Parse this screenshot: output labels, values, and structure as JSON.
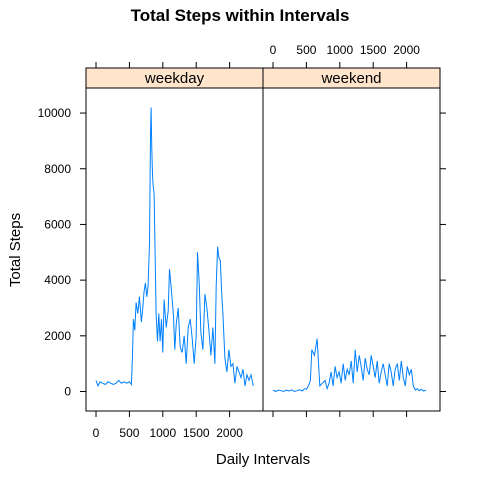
{
  "chart_data": {
    "type": "line",
    "title": "Total Steps within Intervals",
    "xlabel": "Daily Intervals",
    "ylabel": "Total Steps",
    "xlim": [
      -150,
      2500
    ],
    "ylim": [
      -700,
      10900
    ],
    "x_ticks": [
      0,
      500,
      1000,
      1500,
      2000
    ],
    "x_tick_labels": [
      "0",
      "500",
      "1000",
      "1500",
      "2000"
    ],
    "y_ticks": [
      0,
      2000,
      4000,
      6000,
      8000,
      10000
    ],
    "y_tick_labels": [
      "0",
      "2000",
      "4000",
      "6000",
      "8000",
      "10000"
    ],
    "line_color": "#0080ff",
    "strip_color": "#ffe5cc",
    "grid": false,
    "panels": [
      {
        "name": "weekday",
        "x": [
          0,
          30,
          60,
          100,
          140,
          180,
          220,
          260,
          300,
          340,
          380,
          420,
          460,
          500,
          530,
          545,
          560,
          580,
          600,
          625,
          650,
          680,
          700,
          720,
          740,
          760,
          780,
          800,
          815,
          825,
          835,
          845,
          855,
          870,
          900,
          920,
          940,
          960,
          980,
          1000,
          1020,
          1050,
          1080,
          1100,
          1130,
          1160,
          1180,
          1200,
          1230,
          1260,
          1290,
          1320,
          1350,
          1380,
          1410,
          1440,
          1470,
          1500,
          1520,
          1545,
          1570,
          1600,
          1630,
          1660,
          1690,
          1720,
          1750,
          1780,
          1800,
          1820,
          1840,
          1860,
          1880,
          1900,
          1930,
          1960,
          1990,
          2020,
          2050,
          2080,
          2110,
          2140,
          2170,
          2200,
          2230,
          2260,
          2290,
          2320,
          2355
        ],
        "y": [
          400,
          200,
          350,
          300,
          250,
          350,
          300,
          250,
          300,
          400,
          300,
          350,
          300,
          350,
          250,
          1200,
          2600,
          2200,
          3200,
          2800,
          3400,
          2500,
          3000,
          3600,
          3900,
          3400,
          3800,
          5300,
          9200,
          10200,
          8700,
          7800,
          7400,
          7100,
          2800,
          1800,
          2800,
          1800,
          2600,
          1400,
          3300,
          2300,
          2900,
          4400,
          3600,
          2700,
          1500,
          2400,
          3000,
          1600,
          1400,
          2000,
          1000,
          2300,
          2600,
          1900,
          1000,
          2000,
          5000,
          3900,
          2100,
          1500,
          3500,
          3000,
          2200,
          1300,
          2300,
          1000,
          3800,
          5200,
          4800,
          4700,
          3600,
          2800,
          1200,
          700,
          1500,
          900,
          1000,
          300,
          900,
          700,
          500,
          800,
          200,
          600,
          400,
          600,
          200
        ]
      },
      {
        "name": "weekend",
        "x": [
          0,
          40,
          80,
          120,
          160,
          200,
          240,
          280,
          320,
          360,
          400,
          440,
          470,
          500,
          530,
          560,
          580,
          600,
          620,
          640,
          660,
          700,
          740,
          780,
          810,
          840,
          870,
          900,
          930,
          960,
          990,
          1020,
          1050,
          1080,
          1110,
          1140,
          1170,
          1200,
          1230,
          1260,
          1290,
          1320,
          1350,
          1380,
          1410,
          1440,
          1470,
          1500,
          1530,
          1560,
          1590,
          1620,
          1650,
          1680,
          1710,
          1740,
          1770,
          1800,
          1830,
          1860,
          1890,
          1920,
          1950,
          1980,
          2010,
          2040,
          2070,
          2100,
          2130,
          2160,
          2190,
          2220,
          2250,
          2290
        ],
        "y": [
          50,
          0,
          50,
          30,
          0,
          50,
          20,
          60,
          0,
          30,
          60,
          20,
          100,
          80,
          200,
          400,
          1500,
          1400,
          1300,
          1600,
          1900,
          200,
          300,
          400,
          100,
          300,
          700,
          200,
          900,
          500,
          700,
          300,
          1000,
          400,
          800,
          600,
          1100,
          300,
          1500,
          700,
          1300,
          900,
          400,
          1200,
          800,
          600,
          1300,
          900,
          500,
          1100,
          300,
          700,
          1000,
          600,
          200,
          1000,
          700,
          200,
          800,
          1000,
          400,
          1100,
          500,
          200,
          900,
          600,
          800,
          200,
          50,
          100,
          30,
          80,
          20,
          50
        ]
      }
    ]
  }
}
